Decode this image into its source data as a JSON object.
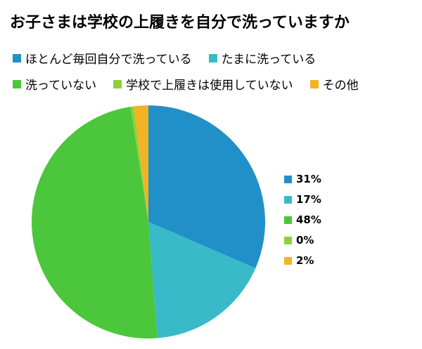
{
  "title": "お子さまは学校の上履きを自分で洗っていますか",
  "chart_data": {
    "type": "pie",
    "title": "お子さまは学校の上履きを自分で洗っていますか",
    "categories": [
      "ほとんど毎回自分で洗っている",
      "たまに洗っている",
      "洗っていない",
      "学校で上履きは使用していない",
      "その他"
    ],
    "values": [
      31,
      17,
      48,
      0.4,
      2
    ],
    "value_labels": [
      "31%",
      "17%",
      "48%",
      "0%",
      "2%"
    ],
    "colors": [
      "#2190c8",
      "#38bac8",
      "#4cc63a",
      "#8ed03a",
      "#f2b324"
    ],
    "legend_top_rows": [
      [
        0,
        1
      ],
      [
        2,
        3,
        4
      ]
    ],
    "start_angle_deg": 0,
    "direction": "clockwise"
  }
}
